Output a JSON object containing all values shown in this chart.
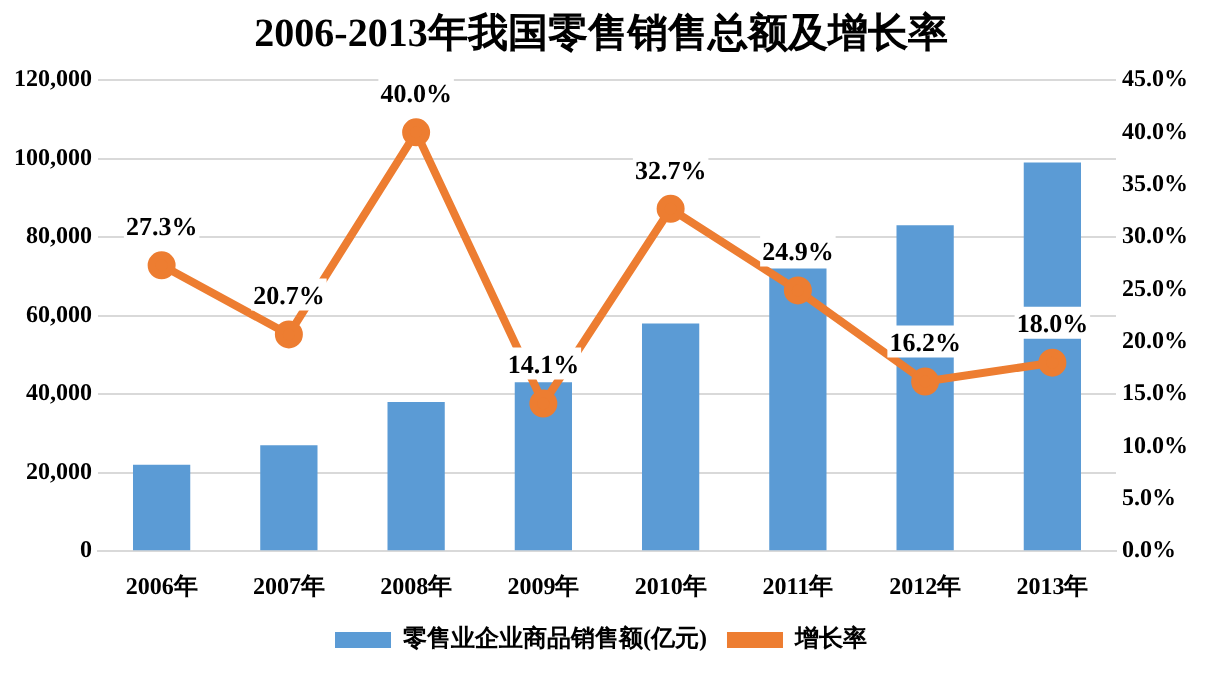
{
  "chart_data": {
    "type": "bar",
    "title": "2006-2013年我国零售销售总额及增长率",
    "categories": [
      "2006年",
      "2007年",
      "2008年",
      "2009年",
      "2010年",
      "2011年",
      "2012年",
      "2013年"
    ],
    "series": [
      {
        "name": "零售业企业商品销售额(亿元)",
        "color": "#5b9bd5",
        "values": [
          22000,
          27000,
          38000,
          43000,
          58000,
          72000,
          83000,
          99000
        ]
      },
      {
        "name": "增长率",
        "type": "line",
        "axis": "y2",
        "color": "#ed7d31",
        "marker": "circle",
        "values": [
          27.3,
          20.7,
          40.0,
          14.1,
          32.7,
          24.9,
          16.2,
          18.0
        ],
        "value_labels": [
          "27.3%",
          "20.7%",
          "40.0%",
          "14.1%",
          "32.7%",
          "24.9%",
          "16.2%",
          "18.0%"
        ]
      }
    ],
    "ylim": [
      0,
      120000
    ],
    "yticks": [
      {
        "value": 0,
        "label": "0"
      },
      {
        "value": 20000,
        "label": "20,000"
      },
      {
        "value": 40000,
        "label": "40,000"
      },
      {
        "value": 60000,
        "label": "60,000"
      },
      {
        "value": 80000,
        "label": "80,000"
      },
      {
        "value": 100000,
        "label": "100,000"
      },
      {
        "value": 120000,
        "label": "120,000"
      }
    ],
    "y2lim": [
      0,
      45
    ],
    "y2ticks": [
      {
        "value": 0,
        "label": "0.0%"
      },
      {
        "value": 5,
        "label": "5.0%"
      },
      {
        "value": 10,
        "label": "10.0%"
      },
      {
        "value": 15,
        "label": "15.0%"
      },
      {
        "value": 20,
        "label": "20.0%"
      },
      {
        "value": 25,
        "label": "25.0%"
      },
      {
        "value": 30,
        "label": "30.0%"
      },
      {
        "value": 35,
        "label": "35.0%"
      },
      {
        "value": 40,
        "label": "40.0%"
      },
      {
        "value": 45,
        "label": "45.0%"
      }
    ],
    "grid": "y",
    "legend": "bottom"
  }
}
